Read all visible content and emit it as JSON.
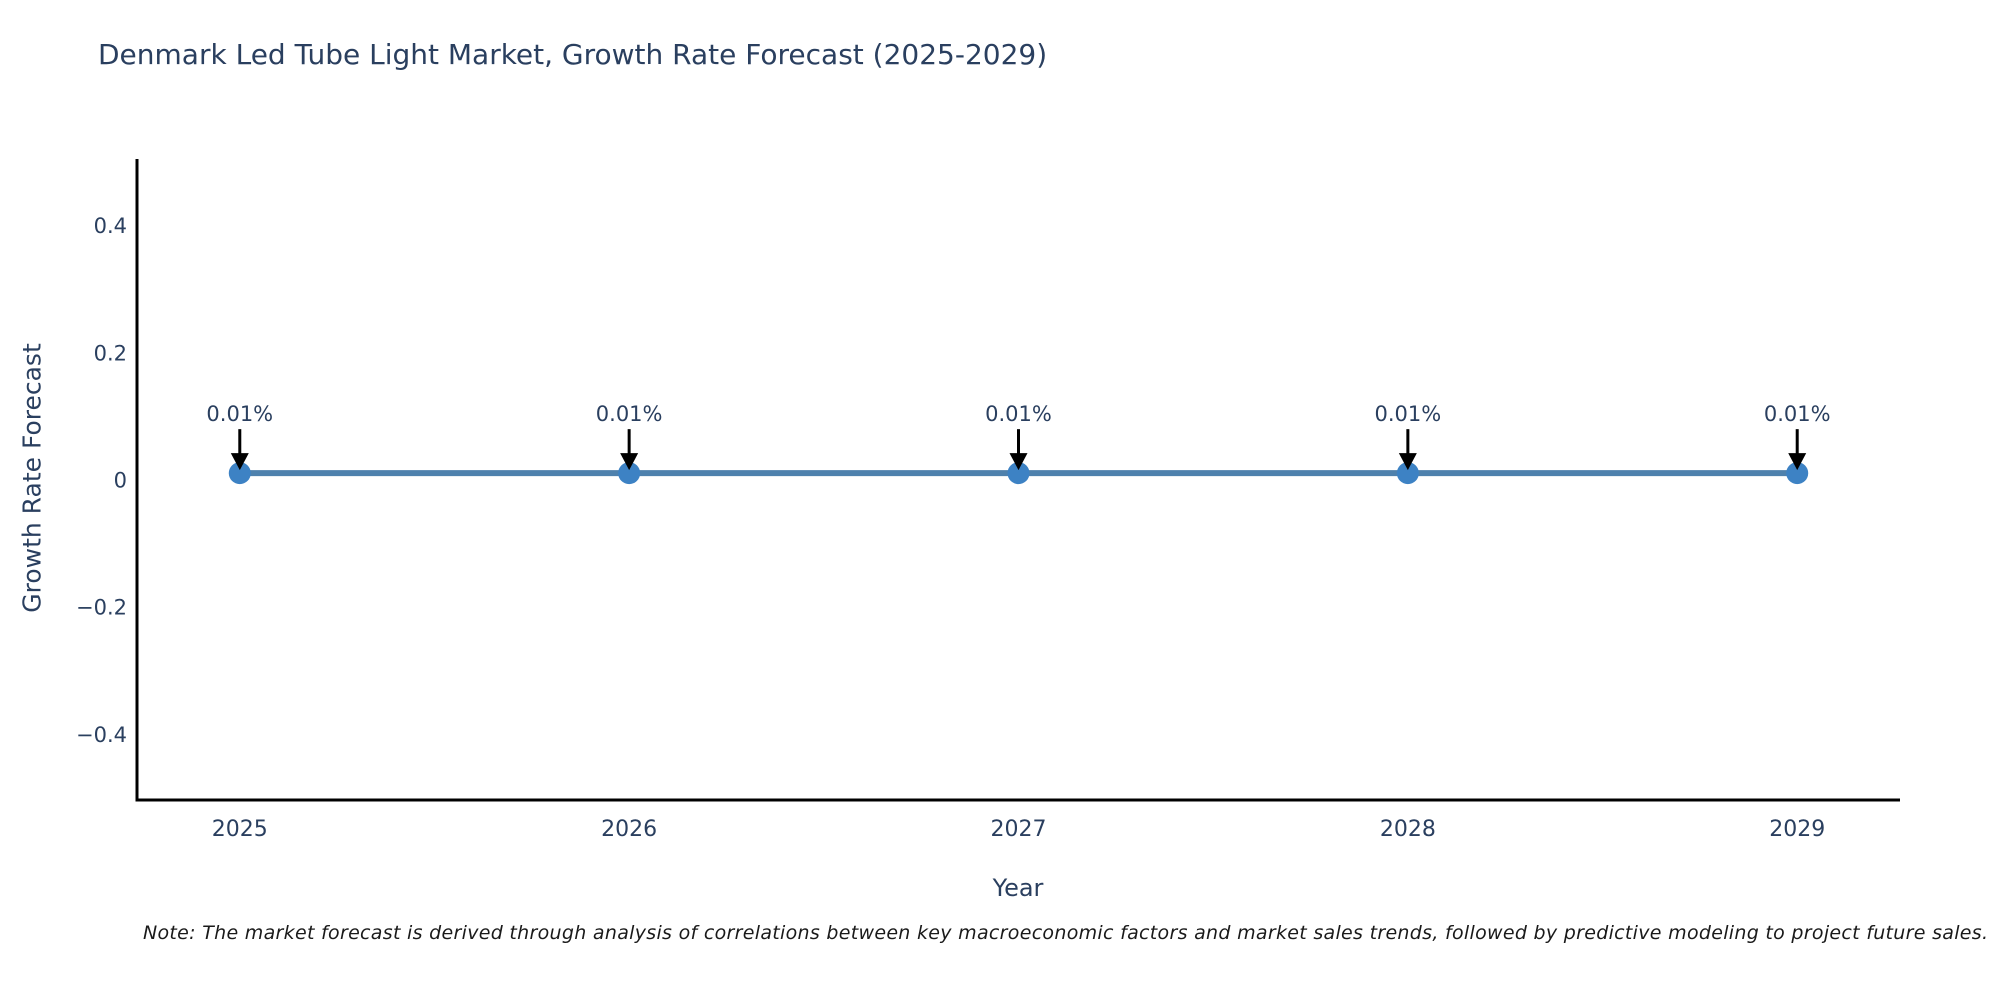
{
  "title": "Denmark Led Tube Light Market, Growth Rate Forecast (2025-2029)",
  "note": "Note: The market forecast is derived through analysis of correlations between key macroeconomic factors and market sales trends, followed by predictive modeling to project future sales.",
  "style": {
    "title_color": "#2a3f5f",
    "tick_color": "#2a3f5f",
    "axis_line_color": "#000000",
    "annotation_text_color": "#2a3f5f",
    "arrow_color": "#000000",
    "background": "#ffffff"
  },
  "chart_data": {
    "type": "line",
    "title": "Denmark Led Tube Light Market, Growth Rate Forecast (2025-2029)",
    "xlabel": "Year",
    "ylabel": "Growth Rate Forecast",
    "x": [
      2025,
      2026,
      2027,
      2028,
      2029
    ],
    "y": [
      0.01,
      0.01,
      0.01,
      0.01,
      0.01
    ],
    "point_labels": [
      "0.01%",
      "0.01%",
      "0.01%",
      "0.01%",
      "0.01%"
    ],
    "series": [
      {
        "name": "Growth Rate Forecast",
        "values": [
          0.01,
          0.01,
          0.01,
          0.01,
          0.01
        ]
      }
    ],
    "xticks": [
      "2025",
      "2026",
      "2027",
      "2028",
      "2029"
    ],
    "yticks": [
      {
        "value": 0.4,
        "label": "0.4"
      },
      {
        "value": 0.2,
        "label": "0.2"
      },
      {
        "value": 0,
        "label": "0"
      },
      {
        "value": -0.2,
        "label": "−0.2"
      },
      {
        "value": -0.4,
        "label": "−0.4"
      }
    ],
    "xlim": [
      2024.736,
      2029.264
    ],
    "ylim": [
      -0.504,
      0.504
    ],
    "grid": false,
    "legend": false,
    "line_color": "#4e81ad",
    "marker_color": "#3d82c4"
  }
}
